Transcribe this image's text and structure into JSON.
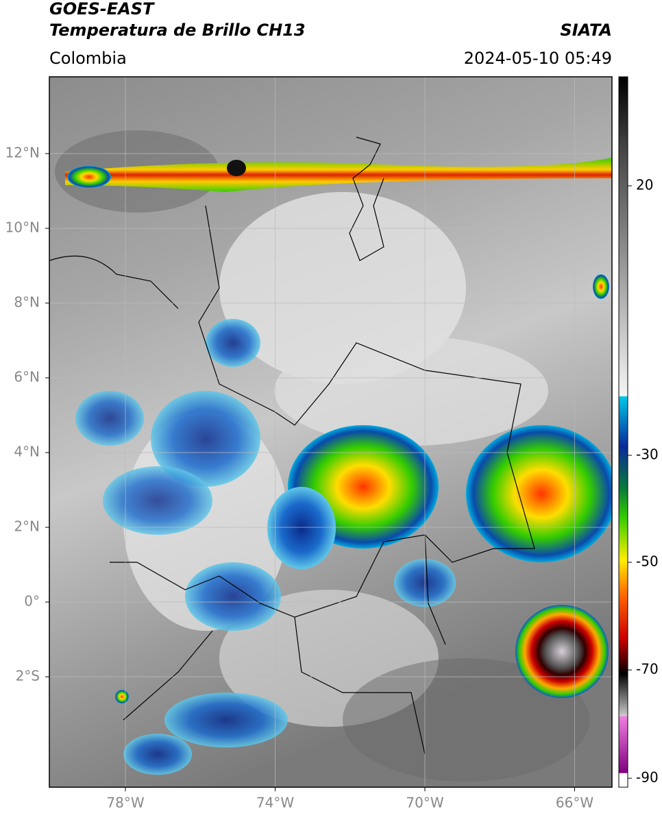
{
  "header": {
    "title": "GOES-EAST",
    "subtitle": "Temperatura de Brillo CH13",
    "region": "Colombia",
    "source": "SIATA",
    "datetime": "2024-05-10 05:49"
  },
  "map": {
    "lat_ticks": [
      "12°N",
      "10°N",
      "8°N",
      "6°N",
      "4°N",
      "2°N",
      "0°",
      "2°S"
    ],
    "lon_ticks": [
      "78°W",
      "74°W",
      "70°W",
      "66°W"
    ]
  },
  "colorbar": {
    "ticks": [
      "20",
      "-30",
      "-50",
      "-70",
      "-90"
    ]
  }
}
